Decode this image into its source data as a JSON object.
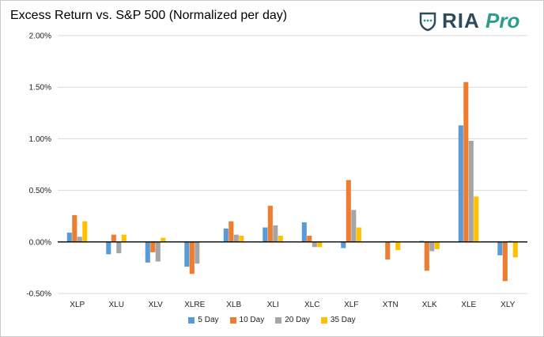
{
  "header": {
    "title": "Excess Return vs. S&P 500 (Normalized per day)",
    "logo_main": "RIA",
    "logo_pro": "Pro"
  },
  "colors": {
    "logo_shield": "#2f4a5a",
    "logo_accent": "#2a9d8f"
  },
  "chart_data": {
    "type": "bar",
    "title": "Excess Return vs. S&P 500 (Normalized per day)",
    "xlabel": "",
    "ylabel": "",
    "ylim": [
      -0.005,
      0.02
    ],
    "yticks": [
      -0.005,
      0,
      0.005,
      0.01,
      0.015,
      0.02
    ],
    "ytick_labels": [
      "-0.50%",
      "0.00%",
      "0.50%",
      "1.00%",
      "1.50%",
      "2.00%"
    ],
    "grid": true,
    "legend_position": "bottom",
    "categories": [
      "XLP",
      "XLU",
      "XLV",
      "XLRE",
      "XLB",
      "XLI",
      "XLC",
      "XLF",
      "XTN",
      "XLK",
      "XLE",
      "XLY"
    ],
    "series": [
      {
        "name": "5 Day",
        "color": "#5b9bd5",
        "values": [
          0.0009,
          -0.0012,
          -0.002,
          -0.0024,
          0.0013,
          0.0014,
          0.0019,
          -0.0006,
          0.0,
          0.0001,
          0.0113,
          -0.0013
        ]
      },
      {
        "name": "10 Day",
        "color": "#ed7d31",
        "values": [
          0.0026,
          0.0007,
          -0.001,
          -0.0031,
          0.002,
          0.0035,
          0.0006,
          0.006,
          -0.0017,
          -0.0028,
          0.0155,
          -0.0038
        ]
      },
      {
        "name": "20 Day",
        "color": "#a5a5a5",
        "values": [
          0.0005,
          -0.0011,
          -0.0019,
          -0.0021,
          0.0007,
          0.0016,
          -0.0005,
          0.0031,
          0.0001,
          -0.0009,
          0.0098,
          0.0001
        ]
      },
      {
        "name": "35 Day",
        "color": "#ffc000",
        "values": [
          0.002,
          0.0007,
          0.0004,
          0.0,
          0.0006,
          0.0006,
          -0.0005,
          0.0014,
          -0.0008,
          -0.0007,
          0.0044,
          -0.0015
        ]
      }
    ]
  }
}
